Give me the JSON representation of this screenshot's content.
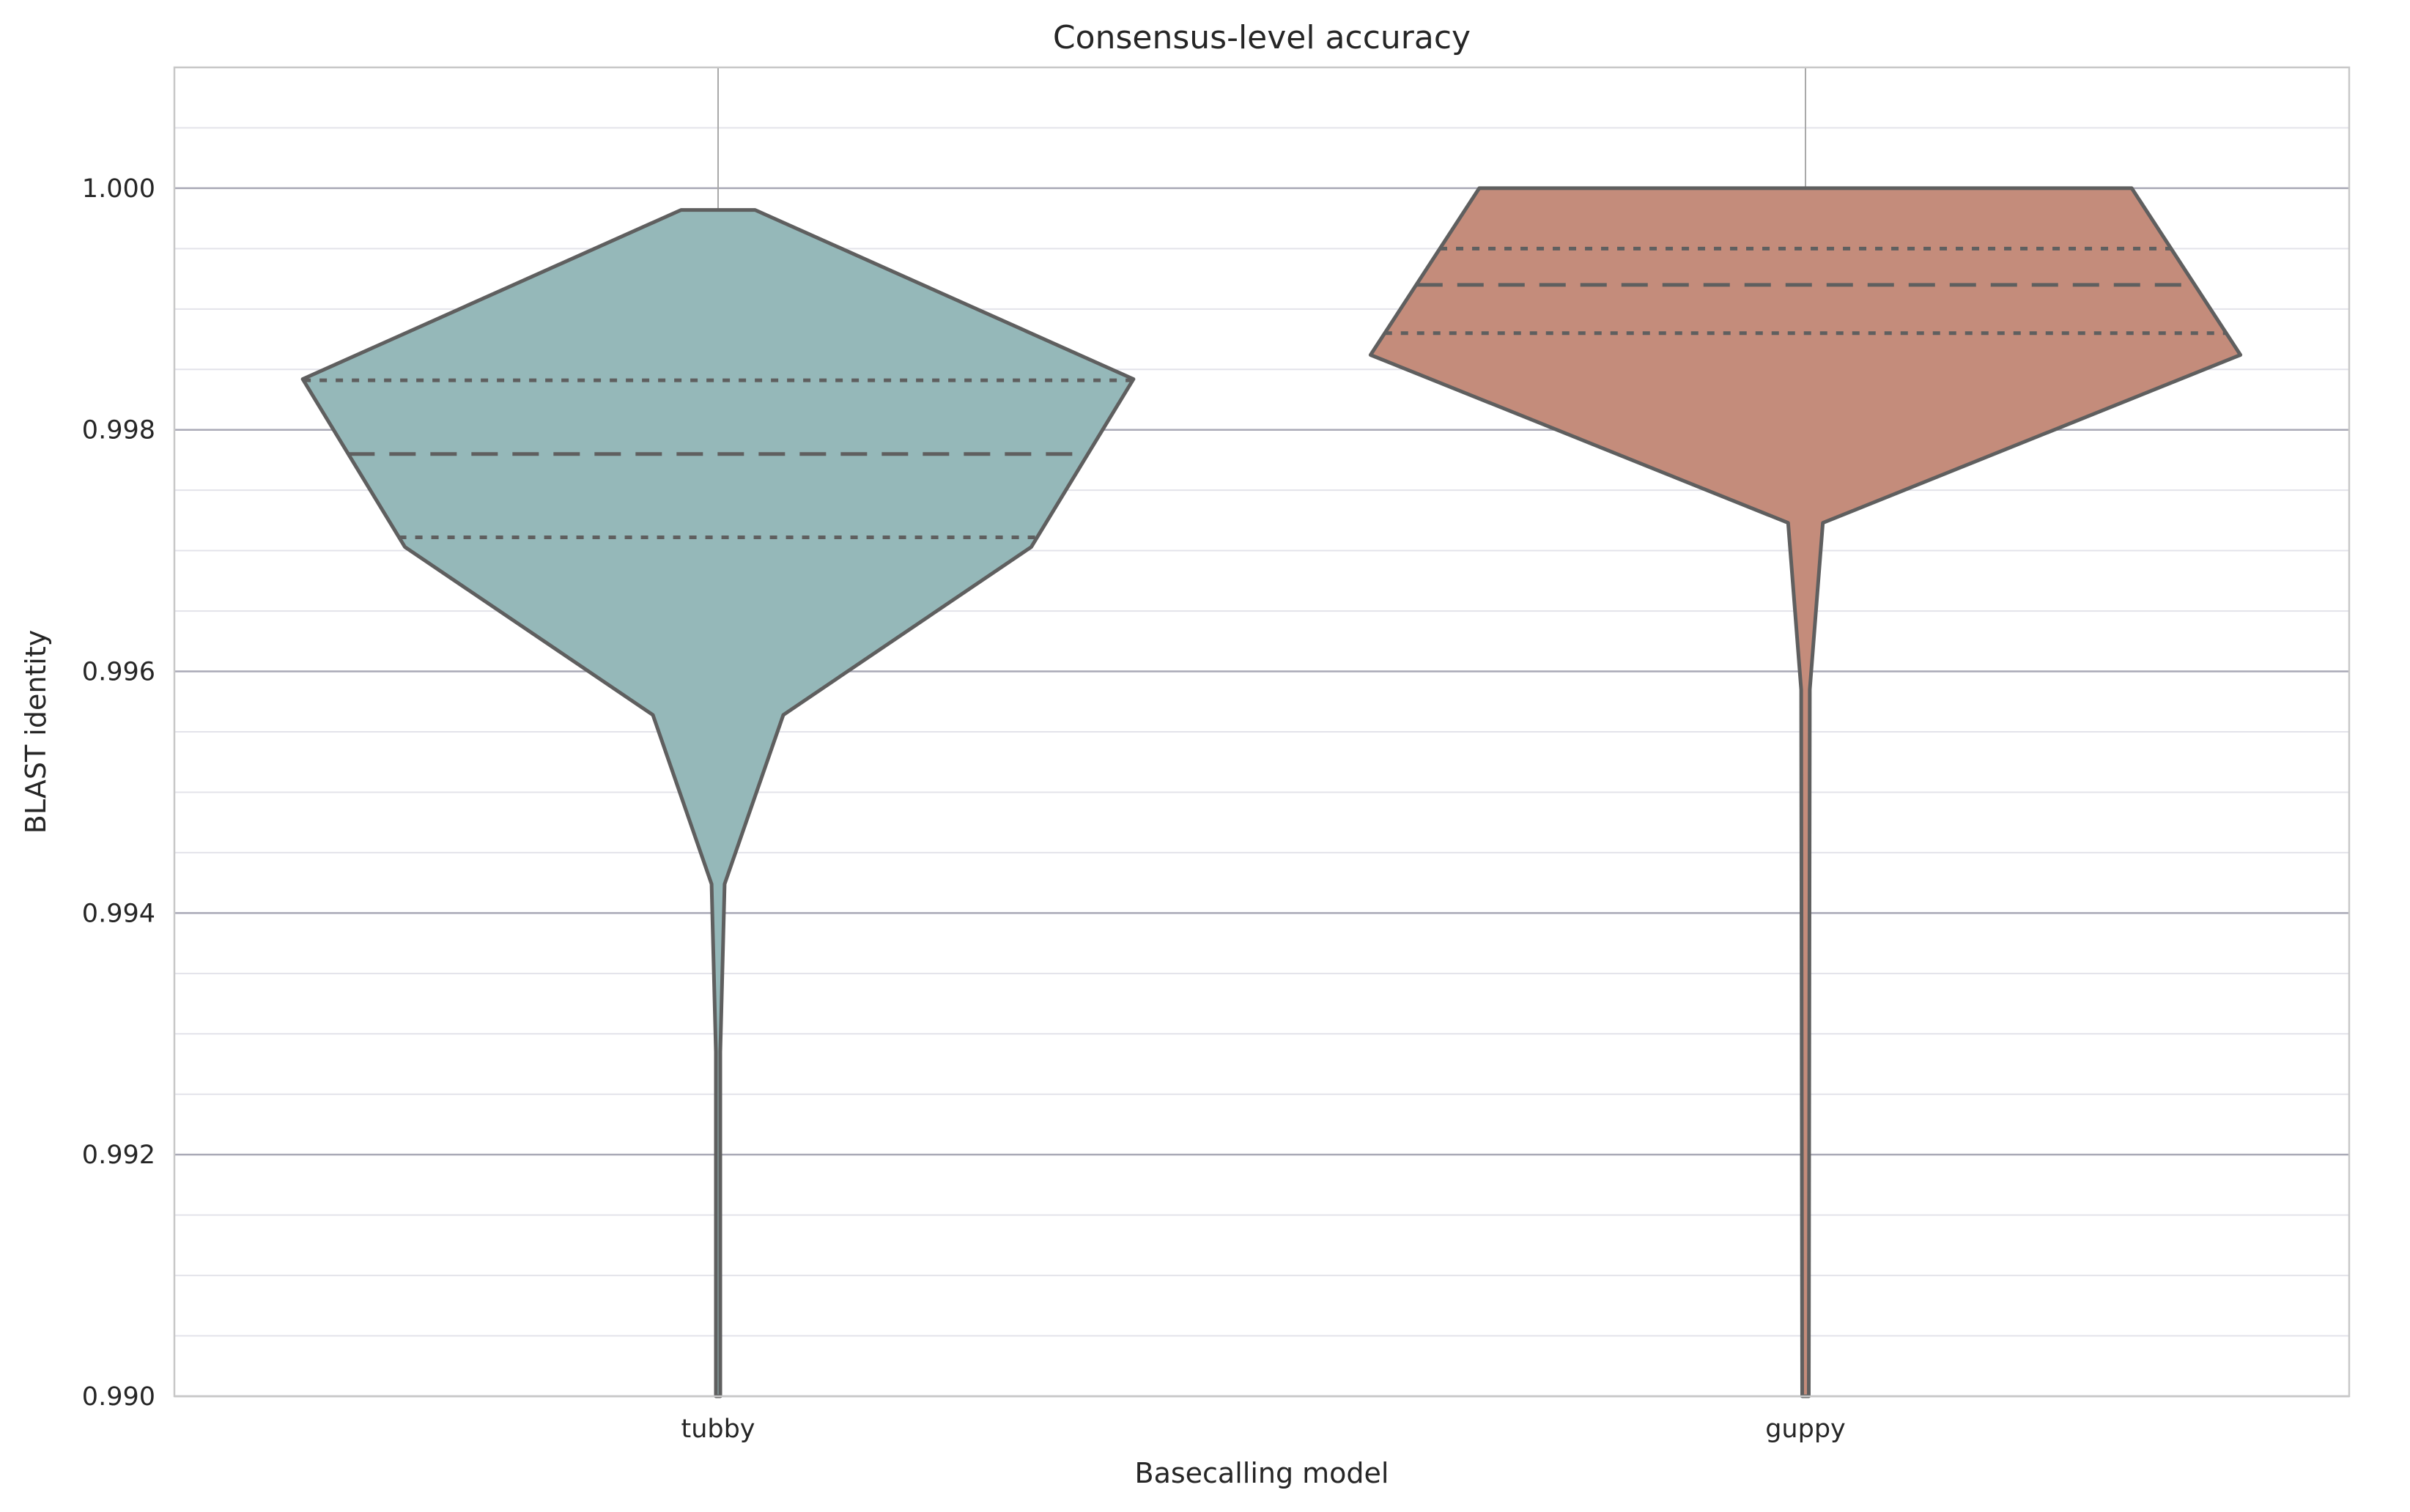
{
  "chart_data": {
    "type": "violin",
    "title": "Consensus-level accuracy",
    "xlabel": "Basecalling model",
    "ylabel": "BLAST identity",
    "ylim": [
      0.99,
      1.001
    ],
    "yticks": [
      {
        "value": 0.99,
        "label": "0.990"
      },
      {
        "value": 0.992,
        "label": "0.992"
      },
      {
        "value": 0.994,
        "label": "0.994"
      },
      {
        "value": 0.996,
        "label": "0.996"
      },
      {
        "value": 0.998,
        "label": "0.998"
      },
      {
        "value": 1.0,
        "label": "1.000"
      }
    ],
    "categories": [
      "tubby",
      "guppy"
    ],
    "grid": true,
    "series": [
      {
        "category": "tubby",
        "color": "#95b8b9",
        "profile": [
          {
            "y": 0.99982,
            "halfwidth": 0.034
          },
          {
            "y": 0.99842,
            "halfwidth": 0.382
          },
          {
            "y": 0.99703,
            "halfwidth": 0.288
          },
          {
            "y": 0.99564,
            "halfwidth": 0.06
          },
          {
            "y": 0.99424,
            "halfwidth": 0.006
          },
          {
            "y": 0.99285,
            "halfwidth": 0.002
          },
          {
            "y": 0.99,
            "halfwidth": 0.002
          }
        ],
        "quartiles": {
          "q1": 0.99711,
          "median": 0.9978,
          "q3": 0.99841
        }
      },
      {
        "category": "guppy",
        "color": "#c48c7b",
        "profile": [
          {
            "y": 1.0,
            "halfwidth": 0.3
          },
          {
            "y": 0.99862,
            "halfwidth": 0.4
          },
          {
            "y": 0.99723,
            "halfwidth": 0.016
          },
          {
            "y": 0.99585,
            "halfwidth": 0.004
          },
          {
            "y": 0.99,
            "halfwidth": 0.003
          }
        ],
        "quartiles": {
          "q1": 0.9988,
          "median": 0.9992,
          "q3": 0.9995
        }
      }
    ]
  }
}
